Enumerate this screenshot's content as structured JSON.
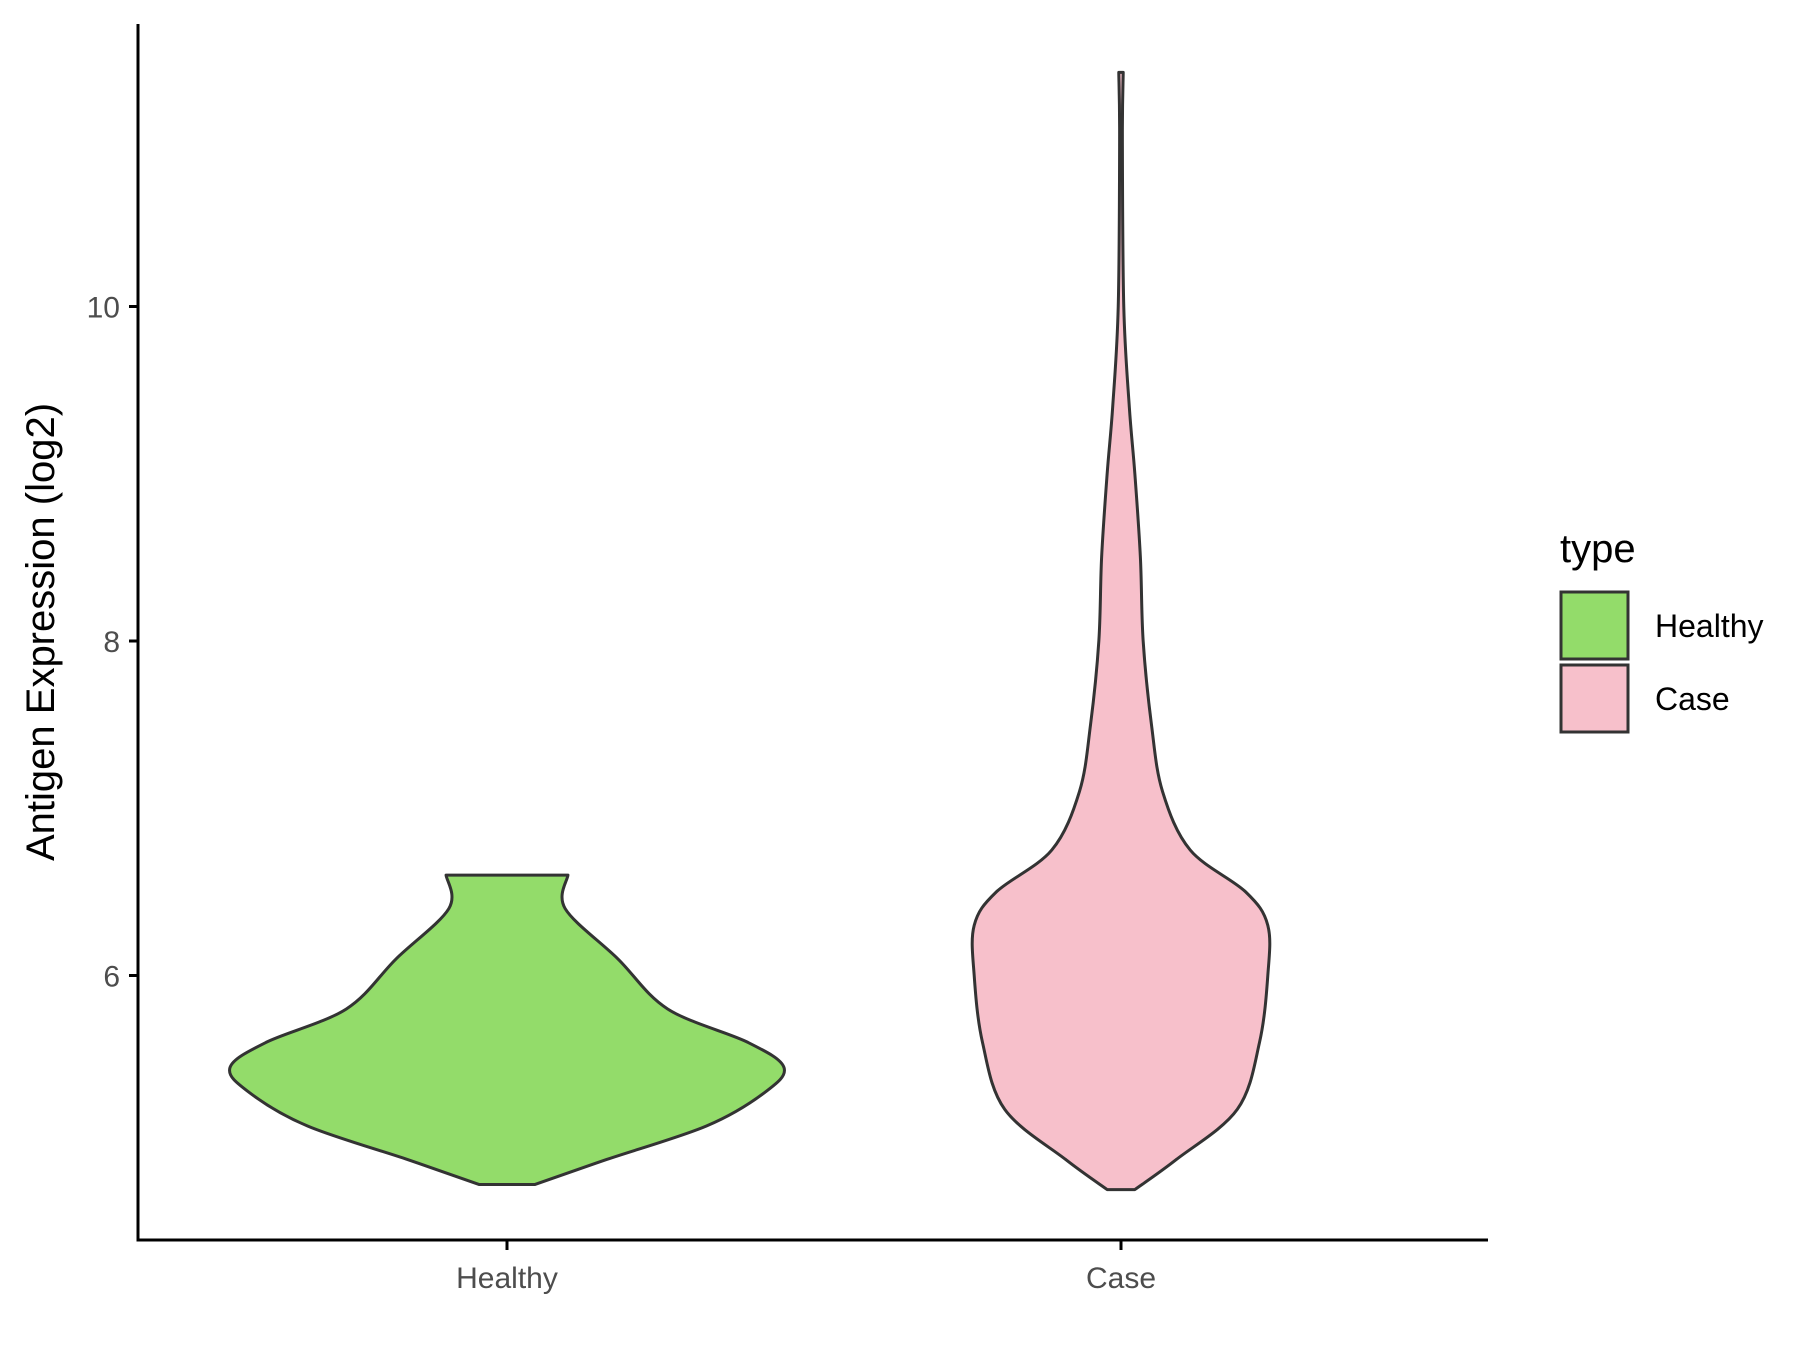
{
  "chart_data": {
    "type": "violin",
    "title": "",
    "xlabel": "",
    "ylabel": "Antigen Expression (log2)",
    "categories": [
      "Healthy",
      "Case"
    ],
    "y_ticks": [
      6,
      8,
      10
    ],
    "y_tick_labels": [
      "6",
      "8",
      "10"
    ],
    "ylim": [
      4.4,
      11.7
    ],
    "grid": false,
    "legend": {
      "title": "type",
      "position": "right",
      "entries": [
        {
          "label": "Healthy",
          "color": "#93dc6a"
        },
        {
          "label": "Case",
          "color": "#f7c0cb"
        }
      ]
    },
    "series": [
      {
        "category": "Healthy",
        "color": "#93dc6a",
        "min": 4.75,
        "max": 6.6,
        "density": [
          [
            4.75,
            0.1
          ],
          [
            4.9,
            0.36
          ],
          [
            5.1,
            0.72
          ],
          [
            5.3,
            0.93
          ],
          [
            5.45,
            1.0
          ],
          [
            5.6,
            0.87
          ],
          [
            5.8,
            0.58
          ],
          [
            6.1,
            0.4
          ],
          [
            6.4,
            0.21
          ],
          [
            6.6,
            0.22
          ]
        ]
      },
      {
        "category": "Case",
        "color": "#f7c0cb",
        "min": 4.72,
        "max": 11.4,
        "density": [
          [
            4.72,
            0.05
          ],
          [
            4.9,
            0.2
          ],
          [
            5.2,
            0.42
          ],
          [
            5.6,
            0.5
          ],
          [
            6.0,
            0.53
          ],
          [
            6.3,
            0.53
          ],
          [
            6.5,
            0.45
          ],
          [
            6.75,
            0.25
          ],
          [
            7.1,
            0.15
          ],
          [
            7.5,
            0.11
          ],
          [
            8.0,
            0.08
          ],
          [
            8.5,
            0.07
          ],
          [
            9.0,
            0.05
          ],
          [
            9.4,
            0.03
          ],
          [
            10.0,
            0.01
          ],
          [
            11.0,
            0.005
          ],
          [
            11.4,
            0.008
          ]
        ]
      }
    ]
  }
}
